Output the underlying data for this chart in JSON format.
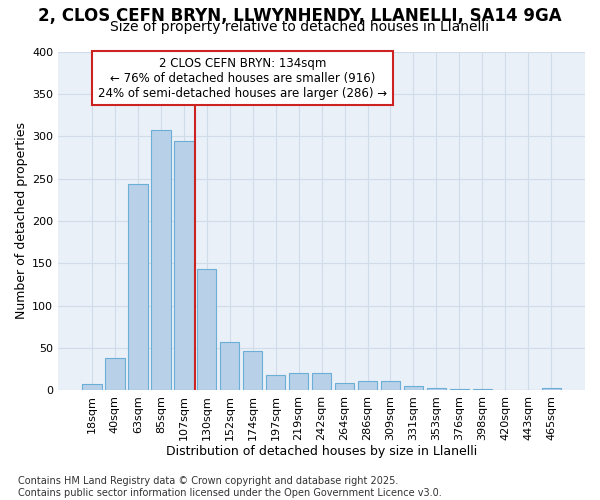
{
  "title1": "2, CLOS CEFN BRYN, LLWYNHENDY, LLANELLI, SA14 9GA",
  "title2": "Size of property relative to detached houses in Llanelli",
  "xlabel": "Distribution of detached houses by size in Llanelli",
  "ylabel": "Number of detached properties",
  "categories": [
    "18sqm",
    "40sqm",
    "63sqm",
    "85sqm",
    "107sqm",
    "130sqm",
    "152sqm",
    "174sqm",
    "197sqm",
    "219sqm",
    "242sqm",
    "264sqm",
    "286sqm",
    "309sqm",
    "331sqm",
    "353sqm",
    "376sqm",
    "398sqm",
    "420sqm",
    "443sqm",
    "465sqm"
  ],
  "values": [
    8,
    38,
    243,
    307,
    294,
    143,
    57,
    47,
    18,
    20,
    20,
    9,
    11,
    11,
    5,
    3,
    2,
    2,
    1,
    0,
    3
  ],
  "bar_color": "#b8d0e8",
  "bar_edge_color": "#6baed6",
  "vline_x_index": 5,
  "vline_color": "#cc2222",
  "property_label": "2 CLOS CEFN BRYN: 134sqm",
  "annotation_line1": "← 76% of detached houses are smaller (916)",
  "annotation_line2": "24% of semi-detached houses are larger (286) →",
  "annotation_box_facecolor": "#ffffff",
  "annotation_box_edgecolor": "#cc2222",
  "grid_color": "#d0dce8",
  "plot_bg_color": "#eaf0f8",
  "fig_bg_color": "#ffffff",
  "ylim": [
    0,
    400
  ],
  "yticks": [
    0,
    50,
    100,
    150,
    200,
    250,
    300,
    350,
    400
  ],
  "footer": "Contains HM Land Registry data © Crown copyright and database right 2025.\nContains public sector information licensed under the Open Government Licence v3.0.",
  "title_fontsize": 12,
  "subtitle_fontsize": 10,
  "tick_fontsize": 8,
  "axis_label_fontsize": 9,
  "footer_fontsize": 7
}
